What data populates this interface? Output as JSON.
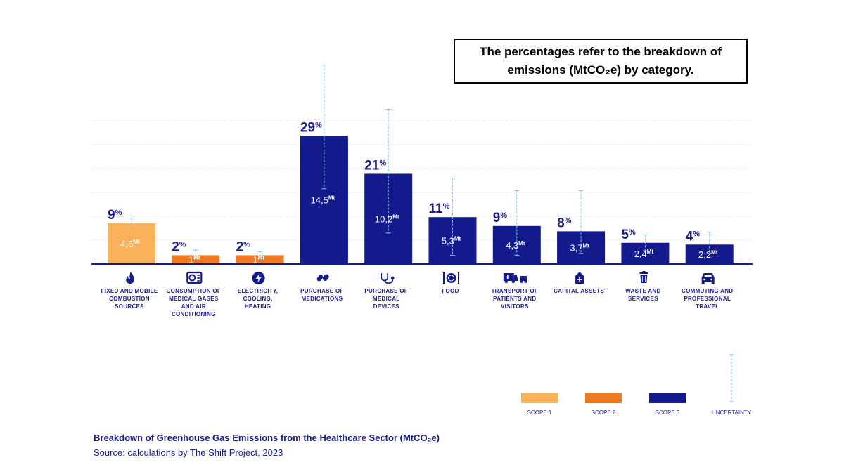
{
  "note": "The percentages refer to the breakdown of emissions (MtCO₂e) by category.",
  "footer": {
    "title": "Breakdown of Greenhouse Gas Emissions from the Healthcare Sector (MtCO₂e)",
    "source": "Source: calculations by The Shift Project, 2023"
  },
  "colors": {
    "scope1": "#f9b25a",
    "scope2": "#f47a1f",
    "scope3": "#121a8c",
    "uncertainty": "#7fc4ea",
    "text": "#1a1d8f"
  },
  "chart_data": {
    "type": "bar",
    "title": "",
    "unit_suffix": "Mt",
    "pct_suffix": "%",
    "categories": [
      {
        "label": [
          "FIXED AND MOBILE",
          "COMBUSTION",
          "SOURCES"
        ],
        "icon": "flame-icon",
        "scope": "scope1",
        "pct": "9",
        "value": 4.6,
        "value_label": "4,6",
        "err_low": 4.0,
        "err_high": 5.2
      },
      {
        "label": [
          "CONSUMPTION OF",
          "MEDICAL GASES",
          "AND AIR",
          "CONDITIONING"
        ],
        "icon": "air-conditioner-icon",
        "scope": "scope2",
        "pct": "2",
        "value": 1.0,
        "value_label": "1",
        "err_low": 0.6,
        "err_high": 1.6
      },
      {
        "label": [
          "ELECTRICITY,",
          "COOLING,",
          "HEATING"
        ],
        "icon": "lightning-icon",
        "scope": "scope2",
        "pct": "2",
        "value": 1.0,
        "value_label": "1",
        "err_low": 0.6,
        "err_high": 1.4
      },
      {
        "label": [
          "PURCHASE OF",
          "MEDICATIONS"
        ],
        "icon": "pills-icon",
        "scope": "scope3",
        "pct": "29",
        "value": 14.5,
        "value_label": "14,5",
        "err_low": 8.5,
        "err_high": 22.5
      },
      {
        "label": [
          "PURCHASE OF",
          "MEDICAL",
          "DEVICES"
        ],
        "icon": "stethoscope-icon",
        "scope": "scope3",
        "pct": "21",
        "value": 10.2,
        "value_label": "10,2",
        "err_low": 3.5,
        "err_high": 17.5
      },
      {
        "label": [
          "FOOD"
        ],
        "icon": "plate-cutlery-icon",
        "scope": "scope3",
        "pct": "11",
        "value": 5.3,
        "value_label": "5,3",
        "err_low": 1.0,
        "err_high": 9.7
      },
      {
        "label": [
          "TRANSPORT OF",
          "PATIENTS AND",
          "VISITORS"
        ],
        "icon": "ambulance-car-icon",
        "scope": "scope3",
        "pct": "9",
        "value": 4.3,
        "value_label": "4,3",
        "err_low": 1.0,
        "err_high": 8.3
      },
      {
        "label": [
          "CAPITAL ASSETS"
        ],
        "icon": "building-icon",
        "scope": "scope3",
        "pct": "8",
        "value": 3.7,
        "value_label": "3,7",
        "err_low": 1.2,
        "err_high": 8.3
      },
      {
        "label": [
          "WASTE AND",
          "SERVICES"
        ],
        "icon": "trash-icon",
        "scope": "scope3",
        "pct": "5",
        "value": 2.4,
        "value_label": "2,4",
        "err_low": 1.5,
        "err_high": 3.3
      },
      {
        "label": [
          "COMMUTING AND",
          "PROFESSIONAL",
          "TRAVEL"
        ],
        "icon": "car-icon",
        "scope": "scope3",
        "pct": "4",
        "value": 2.2,
        "value_label": "2,2",
        "err_low": 1.2,
        "err_high": 3.6
      }
    ],
    "ylim": [
      0,
      24.6
    ],
    "legend": [
      {
        "label": "SCOPE 1",
        "kind": "scope1"
      },
      {
        "label": "SCOPE 2",
        "kind": "scope2"
      },
      {
        "label": "SCOPE 3",
        "kind": "scope3"
      },
      {
        "label": "UNCERTAINTY",
        "kind": "uncertainty"
      }
    ],
    "legend_position": "bottom-right"
  }
}
